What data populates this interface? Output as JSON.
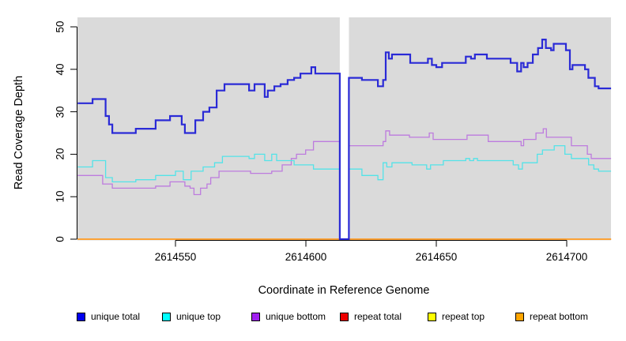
{
  "chart_data": {
    "type": "line",
    "subtype": "step",
    "title": "",
    "xlabel": "Coordinate in Reference Genome",
    "ylabel": "Read Coverage Depth",
    "xlim": [
      2614512.5,
      2614717
    ],
    "ylim": [
      0,
      52
    ],
    "x_ticks": [
      2614550,
      2614600,
      2614650,
      2614700
    ],
    "y_ticks": [
      0,
      10,
      20,
      30,
      40,
      50
    ],
    "grid": false,
    "legend_position": "bottom",
    "panel_bg": "#DADADA",
    "axis_color": "#000000",
    "no_data_gap": {
      "x_start": 2614613,
      "x_end": 2614616.5,
      "fill": "#FFFFFF"
    },
    "series": [
      {
        "name": "repeat total",
        "legend_color": "#EE0000",
        "line_color": "#EE0000",
        "line_width": 1.3,
        "steps": [
          [
            2614512.5,
            0
          ]
        ]
      },
      {
        "name": "repeat top",
        "legend_color": "#FFFF00",
        "line_color": "#FFFF00",
        "line_width": 1.3,
        "steps": [
          [
            2614512.5,
            0
          ]
        ]
      },
      {
        "name": "repeat bottom",
        "legend_color": "#FFA500",
        "line_color": "#FF9E2C",
        "line_width": 1.8,
        "steps": [
          [
            2614512.5,
            0
          ]
        ]
      },
      {
        "name": "unique bottom",
        "legend_color": "#A020F0",
        "line_color": "#BD7BDE",
        "line_width": 1.3,
        "steps": [
          [
            2614512.5,
            15
          ],
          [
            2614522.1,
            13
          ],
          [
            2614525.8,
            12
          ],
          [
            2614542.4,
            12.5
          ],
          [
            2614547.9,
            13.5
          ],
          [
            2614553.6,
            12.5
          ],
          [
            2614555.6,
            12
          ],
          [
            2614557.1,
            10.5
          ],
          [
            2614559.6,
            12
          ],
          [
            2614562.1,
            13
          ],
          [
            2614563.5,
            14.5
          ],
          [
            2614566.7,
            16
          ],
          [
            2614578.8,
            15.5
          ],
          [
            2614586.9,
            16
          ],
          [
            2614590.9,
            17.5
          ],
          [
            2614594.4,
            19
          ],
          [
            2614596.4,
            20
          ],
          [
            2614599.9,
            21
          ],
          [
            2614602.9,
            23
          ],
          [
            2614613,
            0
          ],
          [
            2614616.5,
            22
          ],
          [
            2614629.6,
            23
          ],
          [
            2614630.6,
            25.5
          ],
          [
            2614632.1,
            24.5
          ],
          [
            2614639.7,
            24
          ],
          [
            2614647.3,
            25
          ],
          [
            2614648.8,
            23.5
          ],
          [
            2614661.8,
            24.5
          ],
          [
            2614669.9,
            23
          ],
          [
            2614682.5,
            22
          ],
          [
            2614683.5,
            23.5
          ],
          [
            2614688.2,
            25
          ],
          [
            2614691,
            26
          ],
          [
            2614692.2,
            24
          ],
          [
            2614701.8,
            22
          ],
          [
            2614707.9,
            20
          ],
          [
            2614709.4,
            19
          ]
        ]
      },
      {
        "name": "unique top",
        "legend_color": "#00FFFF",
        "line_color": "#53E3E8",
        "line_width": 1.3,
        "steps": [
          [
            2614512.5,
            17
          ],
          [
            2614518.2,
            18.5
          ],
          [
            2614523.2,
            14.5
          ],
          [
            2614525.8,
            13.5
          ],
          [
            2614534.8,
            14
          ],
          [
            2614542.4,
            15
          ],
          [
            2614550,
            16
          ],
          [
            2614553,
            14
          ],
          [
            2614556,
            16
          ],
          [
            2614560.6,
            17
          ],
          [
            2614565,
            18
          ],
          [
            2614568,
            19.5
          ],
          [
            2614578.2,
            19
          ],
          [
            2614580.3,
            20
          ],
          [
            2614584.2,
            18.5
          ],
          [
            2614586.9,
            20
          ],
          [
            2614588.8,
            18.5
          ],
          [
            2614595.5,
            17.5
          ],
          [
            2614602.9,
            16.5
          ],
          [
            2614613,
            0
          ],
          [
            2614616.5,
            16.5
          ],
          [
            2614621.5,
            15
          ],
          [
            2614627.6,
            14
          ],
          [
            2614629.6,
            18
          ],
          [
            2614631,
            17
          ],
          [
            2614633,
            18
          ],
          [
            2614640.7,
            17.5
          ],
          [
            2614646.3,
            16.5
          ],
          [
            2614647.8,
            17.5
          ],
          [
            2614652.7,
            18.5
          ],
          [
            2614661.3,
            19
          ],
          [
            2614662.8,
            18.5
          ],
          [
            2614664.3,
            19
          ],
          [
            2614665.8,
            18.5
          ],
          [
            2614679.5,
            17.5
          ],
          [
            2614681.5,
            16.5
          ],
          [
            2614683,
            18
          ],
          [
            2614688.7,
            20
          ],
          [
            2614690.7,
            21
          ],
          [
            2614695.2,
            22
          ],
          [
            2614699.3,
            20
          ],
          [
            2614701.8,
            19
          ],
          [
            2614708.4,
            17.5
          ],
          [
            2614710.4,
            16.5
          ],
          [
            2614712.2,
            16
          ]
        ]
      },
      {
        "name": "unique total",
        "legend_color": "#0000EE",
        "line_color": "#2A2AD6",
        "line_width": 2.2,
        "steps": [
          [
            2614512.5,
            32
          ],
          [
            2614518.2,
            33
          ],
          [
            2614523.2,
            29
          ],
          [
            2614524.5,
            27
          ],
          [
            2614525.8,
            25
          ],
          [
            2614534.8,
            26
          ],
          [
            2614542.4,
            28
          ],
          [
            2614547.9,
            29
          ],
          [
            2614552.4,
            27
          ],
          [
            2614553.6,
            25
          ],
          [
            2614557.6,
            28
          ],
          [
            2614560.6,
            30
          ],
          [
            2614563,
            31
          ],
          [
            2614565.8,
            35
          ],
          [
            2614568.8,
            36.5
          ],
          [
            2614578.2,
            35
          ],
          [
            2614580.3,
            36.5
          ],
          [
            2614584.2,
            33.5
          ],
          [
            2614585.4,
            35
          ],
          [
            2614587.9,
            36
          ],
          [
            2614590.3,
            36.5
          ],
          [
            2614593,
            37.5
          ],
          [
            2614595.5,
            38
          ],
          [
            2614597.9,
            39
          ],
          [
            2614602.1,
            40.5
          ],
          [
            2614603.6,
            39
          ],
          [
            2614613,
            0
          ],
          [
            2614616.5,
            38
          ],
          [
            2614621.5,
            37.5
          ],
          [
            2614627.6,
            36
          ],
          [
            2614629.6,
            37.5
          ],
          [
            2614630.6,
            44
          ],
          [
            2614631.8,
            42.5
          ],
          [
            2614633,
            43.5
          ],
          [
            2614640,
            41.5
          ],
          [
            2614646.8,
            42.5
          ],
          [
            2614648.3,
            41
          ],
          [
            2614650,
            40.5
          ],
          [
            2614652.2,
            41.5
          ],
          [
            2614661.3,
            43
          ],
          [
            2614663.3,
            42.5
          ],
          [
            2614664.8,
            43.5
          ],
          [
            2614669.4,
            42.5
          ],
          [
            2614678.5,
            41.5
          ],
          [
            2614681,
            39.5
          ],
          [
            2614682.5,
            41.5
          ],
          [
            2614683.5,
            40.5
          ],
          [
            2614685,
            41.5
          ],
          [
            2614687,
            43.5
          ],
          [
            2614689,
            45
          ],
          [
            2614690.6,
            47
          ],
          [
            2614692,
            45
          ],
          [
            2614694,
            44.5
          ],
          [
            2614695,
            46
          ],
          [
            2614699.7,
            44.5
          ],
          [
            2614701.2,
            40
          ],
          [
            2614702.2,
            41
          ],
          [
            2614707,
            40
          ],
          [
            2614708.3,
            38
          ],
          [
            2614710.8,
            36
          ],
          [
            2614712.2,
            35.5
          ]
        ]
      }
    ],
    "legend_order": [
      "unique total",
      "unique top",
      "unique bottom",
      "repeat total",
      "repeat top",
      "repeat bottom"
    ]
  }
}
